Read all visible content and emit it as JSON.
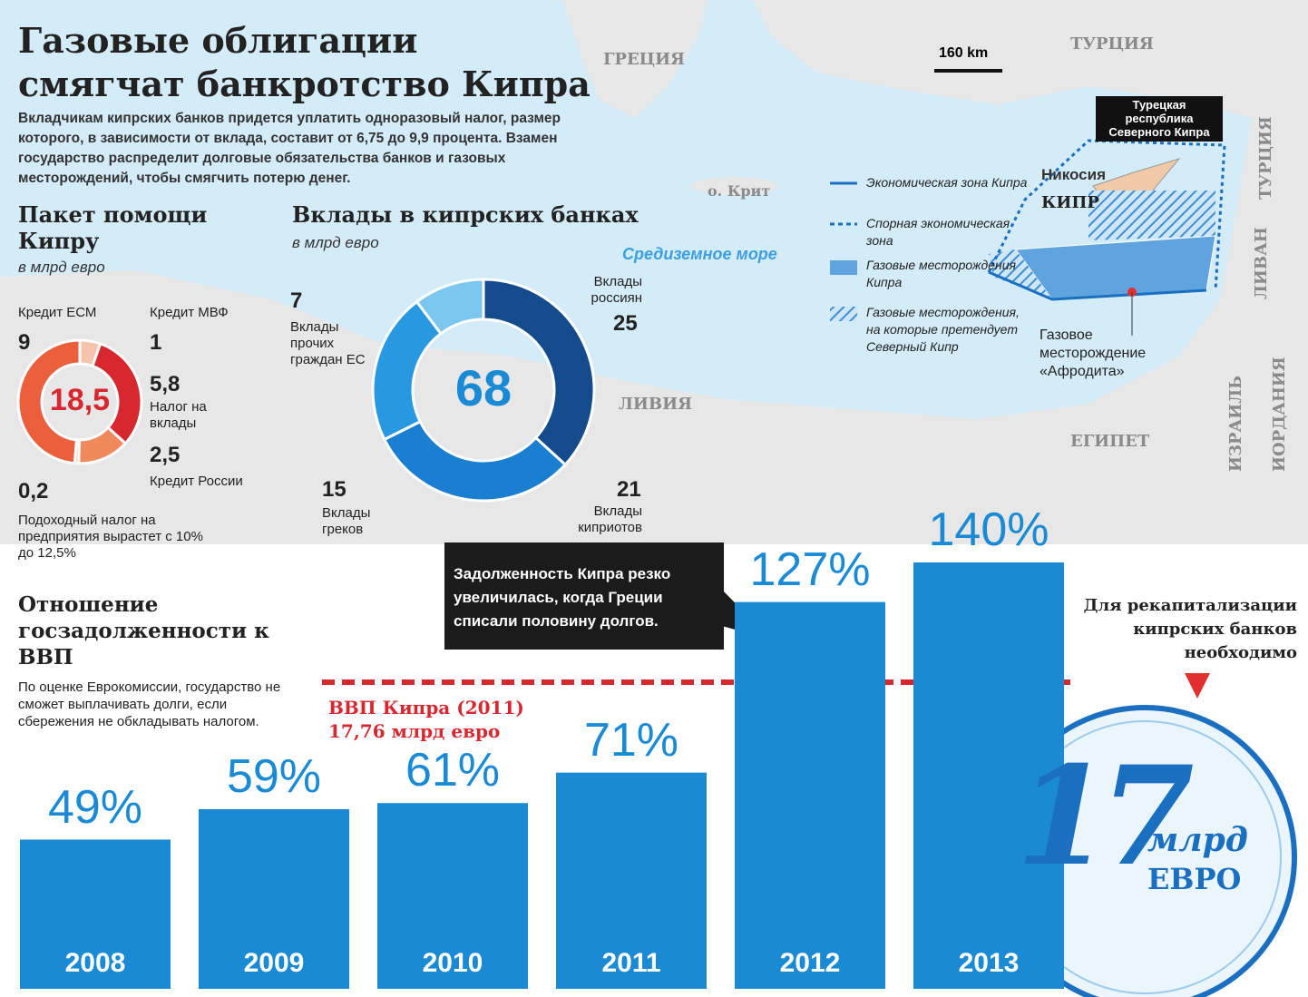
{
  "header": {
    "title": [
      "Газовые облигации",
      "смягчат банкротство Кипра"
    ],
    "intro": "Вкладчикам кипрских банков придется уплатить одноразовый налог, размер которого, в зависимости от вклада, составит от 6,75 до 9,9 процента. Взамен государство распределит долговые обязательства банков и газовых месторождений, чтобы смягчить потерю денег."
  },
  "map": {
    "greece": "ГРЕЦИЯ",
    "turkey": "ТУРЦИЯ",
    "turkey_east": "ТУРЦИЯ",
    "scale": "160 km",
    "trnc": "Турецкая республика Северного Кипра",
    "nicosia": "Никосия",
    "cyprus": "КИПР",
    "crete": "о. Крит",
    "sea": "Средиземное море",
    "libya": "ЛИВИЯ",
    "egypt": "ЕГИПЕТ",
    "israel": "ИЗРАИЛЬ",
    "jordan": "ИОРДАНИЯ",
    "lebanon": "ЛИВАН",
    "aphrodite": "Газовое месторождение «Афродита»",
    "legend": [
      "Экономическая зона Кипра",
      "Спорная экономическая зона",
      "Газовые месторождения Кипра",
      "Газовые месторождения, на которые претендует Северный Кипр"
    ]
  },
  "chart_data": [
    {
      "type": "donut",
      "title": "Пакет помощи Кипру",
      "subtitle": "в млрд евро",
      "categories": [
        "Кредит МВФ",
        "Налог на вклады",
        "Кредит России",
        "Подоходный налог на предприятия вырастет с 10% до 12,5%",
        "Кредит ЕСМ"
      ],
      "values": [
        1,
        5.8,
        2.5,
        0.2,
        9
      ],
      "value_labels": [
        "1",
        "5,8",
        "2,5",
        "0,2",
        "9"
      ],
      "colors": [
        "#f6c3ad",
        "#d7282f",
        "#f08a5d",
        "#f3d3c3",
        "#ec5f3c"
      ],
      "total": {
        "value": 18.5,
        "label": "18,5"
      }
    },
    {
      "type": "donut",
      "title": "Вклады в кипрских банках",
      "subtitle": "в млрд евро",
      "categories": [
        "Вклады россиян",
        "Вклады киприотов",
        "Вклады греков",
        "Вклады прочих граждан ЕС"
      ],
      "values": [
        25,
        21,
        15,
        7
      ],
      "colors": [
        "#144b8c",
        "#1a7fd0",
        "#2899e0",
        "#7cc7ef"
      ],
      "total": 68
    },
    {
      "type": "bar",
      "title": "Отношение госзадолженности к ВВП",
      "subtitle": "По оценке Еврокомиссии, государство не сможет выплачивать долги, если сбережения не обкладывать налогом.",
      "categories": [
        "2008",
        "2009",
        "2010",
        "2011",
        "2012",
        "2013"
      ],
      "values": [
        49,
        59,
        61,
        71,
        127,
        140
      ],
      "value_labels": [
        "49%",
        "59%",
        "61%",
        "71%",
        "127%",
        "140%"
      ],
      "color": "#1a8ad4",
      "gdp_note": [
        "ВВП Кипра (2011)",
        "17,76 млрд евро"
      ],
      "callout": "Задолженность Кипра резко увеличилась, когда Греции списали половину долгов."
    }
  ],
  "recapitalization": {
    "text": "Для рекапитализации кипрских банков необходимо",
    "amount": "17",
    "unit": "млрд",
    "currency": "ЕВРО"
  }
}
